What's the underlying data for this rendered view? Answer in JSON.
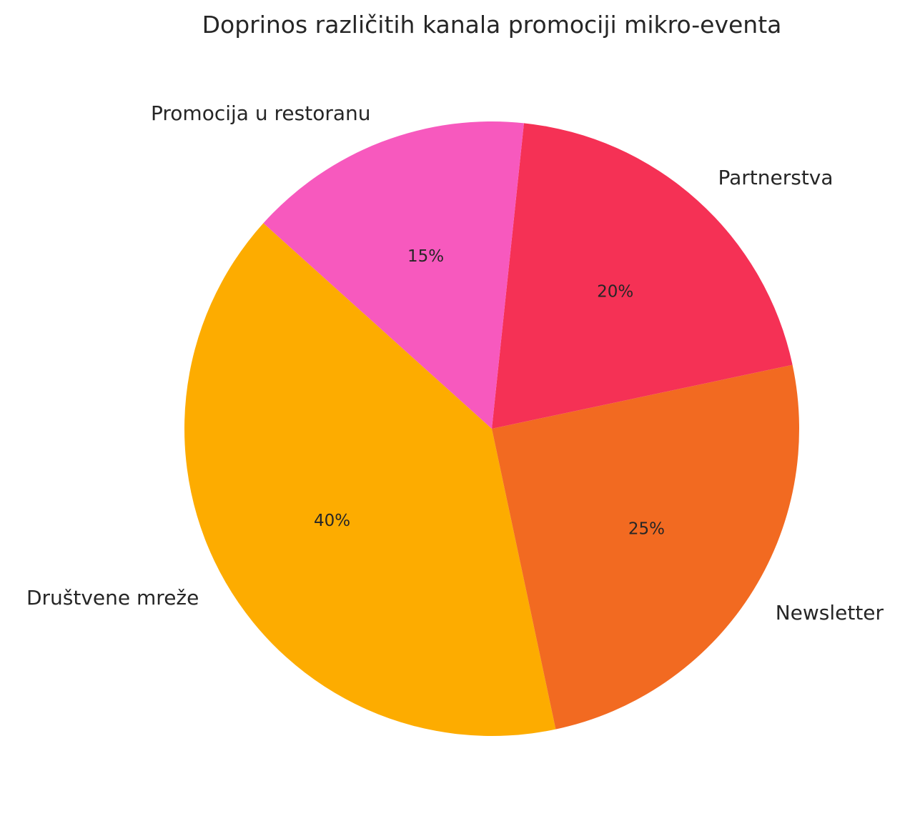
{
  "chart_data": {
    "type": "pie",
    "title": "Doprinos različitih kanala promociji mikro-eventa",
    "slices": [
      {
        "label": "Društvene mreže",
        "value": 40,
        "display": "40%",
        "color": "#FDAC00"
      },
      {
        "label": "Newsletter",
        "value": 25,
        "display": "25%",
        "color": "#F26A21"
      },
      {
        "label": "Partnerstva",
        "value": 20,
        "display": "20%",
        "color": "#F53155"
      },
      {
        "label": "Promocija u restoranu",
        "value": 15,
        "display": "15%",
        "color": "#F759BE"
      }
    ],
    "start_angle_deg": 138,
    "direction": "counterclockwise",
    "legend": "none"
  }
}
